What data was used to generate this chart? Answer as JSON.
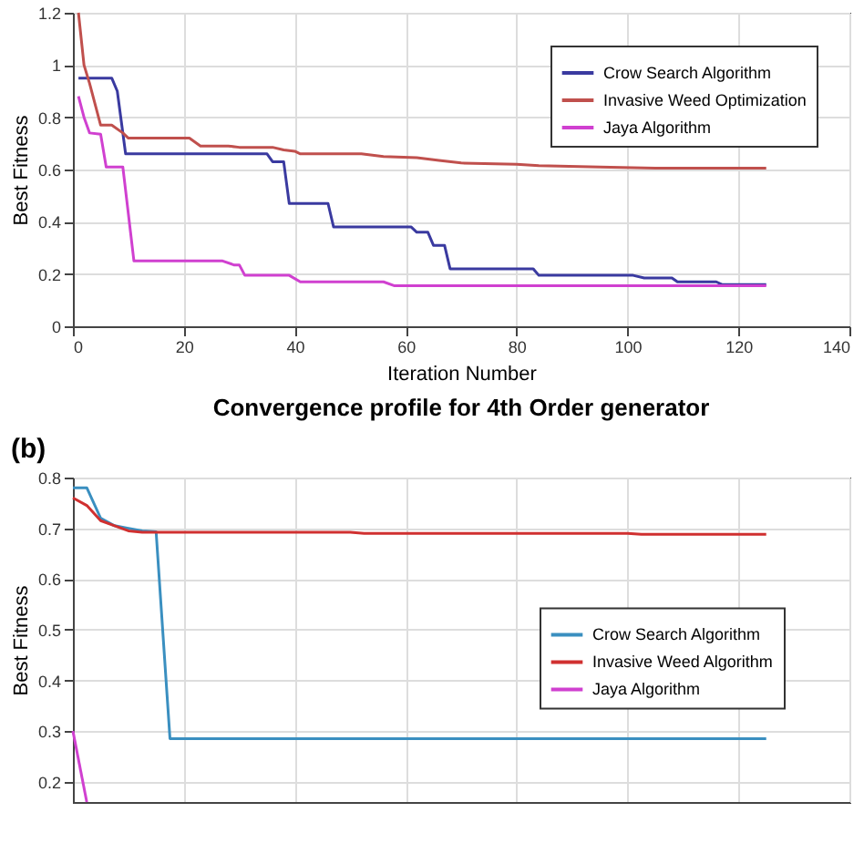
{
  "chart_data": [
    {
      "type": "line",
      "xlabel": "Iteration Number",
      "ylabel": "Best Fitness",
      "xlim": [
        0,
        140
      ],
      "xticks": [
        0,
        20,
        40,
        60,
        80,
        100,
        120,
        140
      ],
      "ylim": [
        0,
        1.2
      ],
      "yticks": [
        0,
        0.2,
        0.4,
        0.6,
        0.8,
        1,
        1.2
      ],
      "grid": true,
      "legend": "top right",
      "series": [
        {
          "name": "Crow Search Algorithm",
          "color": "#3a3aa0",
          "x": [
            1,
            7,
            8,
            9.5,
            35,
            36,
            38,
            39,
            46,
            47,
            61,
            62,
            64,
            65,
            67,
            68,
            83,
            84,
            101,
            103,
            108,
            109,
            116,
            117,
            125
          ],
          "values": [
            0.95,
            0.95,
            0.9,
            0.66,
            0.66,
            0.63,
            0.63,
            0.47,
            0.47,
            0.38,
            0.38,
            0.36,
            0.36,
            0.31,
            0.31,
            0.22,
            0.22,
            0.195,
            0.195,
            0.185,
            0.185,
            0.17,
            0.17,
            0.16,
            0.16
          ]
        },
        {
          "name": "Invasive Weed Optimization",
          "color": "#c0504d",
          "x": [
            1,
            2,
            3,
            5,
            7,
            9,
            10,
            21,
            23,
            28,
            30,
            36,
            38,
            40,
            41,
            52,
            56,
            62,
            66,
            70,
            80,
            84,
            95,
            105,
            125
          ],
          "values": [
            1.2,
            1.0,
            0.93,
            0.77,
            0.77,
            0.74,
            0.72,
            0.72,
            0.69,
            0.69,
            0.685,
            0.685,
            0.675,
            0.67,
            0.66,
            0.66,
            0.65,
            0.645,
            0.635,
            0.625,
            0.62,
            0.615,
            0.61,
            0.605,
            0.605
          ]
        },
        {
          "name": "Jaya Algorithm",
          "color": "#d040d0",
          "x": [
            1,
            2,
            3,
            5,
            6,
            9,
            11,
            27,
            29,
            30,
            31,
            39,
            41,
            56,
            58,
            125
          ],
          "values": [
            0.88,
            0.8,
            0.74,
            0.735,
            0.61,
            0.61,
            0.25,
            0.25,
            0.235,
            0.235,
            0.195,
            0.195,
            0.17,
            0.17,
            0.155,
            0.155
          ]
        }
      ]
    },
    {
      "type": "line",
      "title": "Convergence profile for 4th Order generator",
      "annotations": [
        "(b)"
      ],
      "ylabel": "Best Fitness",
      "ylim": [
        0.16,
        0.8
      ],
      "yticks": [
        0.2,
        0.3,
        0.4,
        0.5,
        0.6,
        0.7,
        0.8
      ],
      "grid": true,
      "legend": "right",
      "categories": [
        null,
        null,
        null,
        null,
        null,
        null,
        null,
        null,
        null,
        null,
        null,
        null,
        null,
        null,
        null,
        null,
        null,
        null,
        null,
        null,
        null,
        null,
        null,
        null,
        null,
        null,
        null,
        null,
        null,
        null,
        null,
        null,
        null,
        null,
        null,
        null,
        null,
        null,
        null,
        null,
        null,
        null,
        null,
        null,
        null,
        null,
        null,
        null,
        null,
        null,
        null,
        null,
        null,
        null,
        null,
        null,
        null
      ],
      "series": [
        {
          "name": "Crow Search Algorithm",
          "color": "#3a8fc0",
          "values": [
            0.78,
            0.78,
            0.72,
            0.705,
            0.7,
            0.695,
            0.693,
            0.285,
            0.285,
            0.285,
            0.285,
            0.285,
            0.285,
            0.285,
            0.285,
            0.285,
            0.285,
            0.285,
            0.285,
            0.285,
            0.285,
            0.285,
            0.285,
            0.285,
            0.285,
            0.285,
            0.285,
            0.285,
            0.285,
            0.285,
            0.285,
            0.285,
            0.285,
            0.285,
            0.285,
            0.285,
            0.285,
            0.285,
            0.285,
            0.285,
            0.285,
            0.285,
            0.285,
            0.285,
            0.285,
            0.285,
            0.285,
            0.285,
            0.285,
            0.285,
            0.285,
            null,
            null,
            null,
            null,
            null,
            null
          ]
        },
        {
          "name": "Invasive Weed Algorithm",
          "color": "#d03030",
          "values": [
            0.76,
            0.745,
            0.715,
            0.705,
            0.695,
            0.692,
            0.692,
            0.692,
            0.692,
            0.692,
            0.692,
            0.692,
            0.692,
            0.692,
            0.692,
            0.692,
            0.692,
            0.692,
            0.692,
            0.692,
            0.692,
            0.69,
            0.69,
            0.69,
            0.69,
            0.69,
            0.69,
            0.69,
            0.69,
            0.69,
            0.69,
            0.69,
            0.69,
            0.69,
            0.69,
            0.69,
            0.69,
            0.69,
            0.69,
            0.69,
            0.69,
            0.688,
            0.688,
            0.688,
            0.688,
            0.688,
            0.688,
            0.688,
            0.688,
            0.688,
            0.688,
            null,
            null,
            null,
            null,
            null,
            null
          ]
        },
        {
          "name": "Jaya Algorithm",
          "color": "#d040d0",
          "values": [
            0.3,
            0.16,
            null,
            null,
            null,
            null,
            null,
            null,
            null,
            null,
            null,
            null,
            null,
            null,
            null,
            null,
            null,
            null,
            null,
            null,
            null,
            null,
            null,
            null,
            null,
            null,
            null,
            null,
            null,
            null,
            null,
            null,
            null,
            null,
            null,
            null,
            null,
            null,
            null,
            null,
            null,
            null,
            null,
            null,
            null,
            null,
            null,
            null,
            null,
            null,
            null,
            null,
            null,
            null,
            null,
            null,
            null
          ]
        }
      ]
    }
  ]
}
